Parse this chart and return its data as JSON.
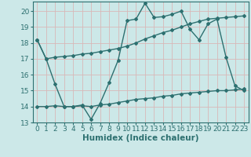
{
  "xlabel": "Humidex (Indice chaleur)",
  "bg_color": "#cce8e8",
  "line_color": "#2d7070",
  "grid_color": "#e8c8c8",
  "xlim": [
    -0.5,
    23.5
  ],
  "ylim": [
    13,
    20.6
  ],
  "yticks": [
    13,
    14,
    15,
    16,
    17,
    18,
    19,
    20
  ],
  "xticks": [
    0,
    1,
    2,
    3,
    4,
    5,
    6,
    7,
    8,
    9,
    10,
    11,
    12,
    13,
    14,
    15,
    16,
    17,
    18,
    19,
    20,
    21,
    22,
    23
  ],
  "line1_x": [
    0,
    1,
    2,
    3,
    4,
    5,
    6,
    7,
    8,
    9,
    10,
    11,
    12,
    13,
    14,
    15,
    16,
    17,
    18,
    19,
    20,
    21,
    22,
    23
  ],
  "line1_y": [
    18.2,
    17.0,
    17.1,
    17.15,
    17.2,
    17.3,
    17.35,
    17.45,
    17.55,
    17.65,
    17.8,
    18.0,
    18.25,
    18.45,
    18.65,
    18.8,
    19.0,
    19.2,
    19.35,
    19.5,
    19.55,
    19.6,
    19.65,
    19.7
  ],
  "line2_x": [
    0,
    1,
    2,
    3,
    4,
    5,
    6,
    7,
    8,
    9,
    10,
    11,
    12,
    13,
    14,
    15,
    16,
    17,
    18,
    19,
    20,
    21,
    22,
    23
  ],
  "line2_y": [
    18.2,
    17.0,
    15.4,
    14.0,
    14.0,
    14.1,
    13.2,
    14.2,
    15.5,
    16.9,
    19.4,
    19.5,
    20.5,
    19.6,
    19.65,
    19.8,
    20.0,
    18.85,
    18.2,
    19.2,
    19.5,
    17.1,
    15.3,
    15.0
  ],
  "line3_x": [
    0,
    1,
    2,
    3,
    4,
    5,
    6,
    7,
    8,
    9,
    10,
    11,
    12,
    13,
    14,
    15,
    16,
    17,
    18,
    19,
    20,
    21,
    22,
    23
  ],
  "line3_y": [
    14.0,
    14.0,
    14.05,
    14.0,
    14.0,
    14.05,
    14.0,
    14.1,
    14.15,
    14.25,
    14.35,
    14.45,
    14.5,
    14.55,
    14.65,
    14.7,
    14.8,
    14.85,
    14.9,
    14.95,
    15.0,
    15.0,
    15.05,
    15.1
  ],
  "marker": "D",
  "markersize": 2.0,
  "linewidth": 1.0,
  "xlabel_fontsize": 7.5,
  "tick_fontsize": 6.5
}
